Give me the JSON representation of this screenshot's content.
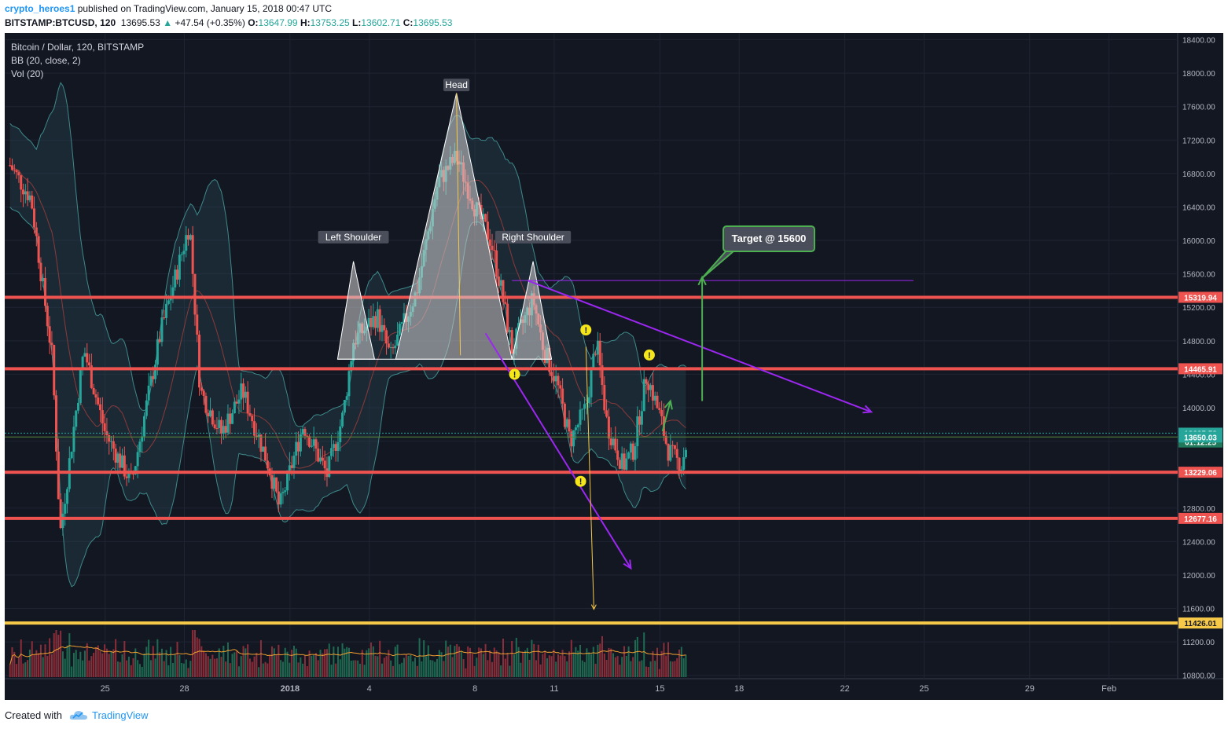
{
  "header": {
    "author": "crypto_heroes1",
    "published_text": " published on TradingView.com, January 15, 2018 00:47 UTC",
    "symbol": "BITSTAMP:BTCUSD, 120",
    "last_price": "13695.53",
    "change": "+47.54 (+0.35%)",
    "open_label": "O:",
    "open": "13647.99",
    "high_label": "H:",
    "high": "13753.25",
    "low_label": "L:",
    "low": "13602.71",
    "close_label": "C:",
    "close": "13695.53"
  },
  "chart_data": {
    "type": "candlestick",
    "legend": [
      "Bitcoin / Dollar, 120, BITSTAMP",
      "BB (20, close, 2)",
      "Vol (20)"
    ],
    "y_ticks": [
      10800,
      11200,
      11600,
      12000,
      12400,
      12800,
      13200,
      13600,
      14000,
      14400,
      14800,
      15200,
      15600,
      16000,
      16400,
      16800,
      17200,
      17600,
      18000,
      18400
    ],
    "ylim": [
      10760,
      18480
    ],
    "x_ticks": [
      "25",
      "28",
      "2018",
      "4",
      "8",
      "11",
      "15",
      "18",
      "22",
      "25",
      "29",
      "Feb"
    ],
    "x_tick_days": [
      3,
      6,
      10,
      13,
      17,
      20,
      24,
      27,
      31,
      34,
      38,
      41
    ],
    "xlim_days": [
      -0.8,
      43.6
    ],
    "last_data_day": 24,
    "price_levels": [
      {
        "label": "15319.94",
        "value": 15319.94,
        "color": "#ef5350",
        "kind": "support_resistance"
      },
      {
        "label": "14465.91",
        "value": 14465.91,
        "color": "#ef5350",
        "kind": "support_resistance"
      },
      {
        "label": "13229.06",
        "value": 13229.06,
        "color": "#ef5350",
        "kind": "support_resistance"
      },
      {
        "label": "12677.16",
        "value": 12677.16,
        "color": "#ef5350",
        "kind": "support_resistance"
      },
      {
        "label": "11426.01",
        "value": 11426.01,
        "color": "#f7c948",
        "kind": "target_low"
      }
    ],
    "current_price": {
      "label": "13695.53",
      "value": 13695.53,
      "color": "#26a69a"
    },
    "countdown": {
      "label": "01:12:25",
      "value": 13590,
      "color": "#26a69a"
    },
    "bb_basis": {
      "label": "13650.03",
      "value": 13650.03,
      "color": "#26a69a"
    },
    "pattern": {
      "left_shoulder": {
        "label": "Left Shoulder",
        "day": 12.4,
        "price": 15750
      },
      "head": {
        "label": "Head",
        "day": 16.3,
        "price": 17760
      },
      "right_shoulder": {
        "label": "Right Shoulder",
        "day": 19.2,
        "price": 15750
      },
      "neckline": 14580
    },
    "target": {
      "label": "Target @ 15600",
      "price": 15600
    },
    "anchor_points": [
      {
        "day": -0.6,
        "price": 16900
      },
      {
        "day": 0.2,
        "price": 16500
      },
      {
        "day": 1.0,
        "price": 14600
      },
      {
        "day": 1.3,
        "price": 12500
      },
      {
        "day": 2.2,
        "price": 14700
      },
      {
        "day": 3.0,
        "price": 13700
      },
      {
        "day": 4.0,
        "price": 13100
      },
      {
        "day": 5.1,
        "price": 14900
      },
      {
        "day": 6.2,
        "price": 16200
      },
      {
        "day": 6.6,
        "price": 14200
      },
      {
        "day": 7.4,
        "price": 13700
      },
      {
        "day": 8.2,
        "price": 14200
      },
      {
        "day": 9.2,
        "price": 13300
      },
      {
        "day": 9.6,
        "price": 12800
      },
      {
        "day": 10.5,
        "price": 13800
      },
      {
        "day": 11.4,
        "price": 13200
      },
      {
        "day": 12.0,
        "price": 13900
      },
      {
        "day": 12.4,
        "price": 14800
      },
      {
        "day": 13.3,
        "price": 15100
      },
      {
        "day": 13.8,
        "price": 14600
      },
      {
        "day": 14.8,
        "price": 15400
      },
      {
        "day": 15.6,
        "price": 16700
      },
      {
        "day": 16.3,
        "price": 17000
      },
      {
        "day": 17.0,
        "price": 16400
      },
      {
        "day": 17.6,
        "price": 16000
      },
      {
        "day": 18.0,
        "price": 15400
      },
      {
        "day": 18.4,
        "price": 14700
      },
      {
        "day": 19.2,
        "price": 15300
      },
      {
        "day": 19.6,
        "price": 14700
      },
      {
        "day": 20.1,
        "price": 14300
      },
      {
        "day": 20.6,
        "price": 13600
      },
      {
        "day": 21.2,
        "price": 14000
      },
      {
        "day": 21.6,
        "price": 14800
      },
      {
        "day": 22.0,
        "price": 13800
      },
      {
        "day": 22.6,
        "price": 13300
      },
      {
        "day": 23.0,
        "price": 13500
      },
      {
        "day": 23.5,
        "price": 14400
      },
      {
        "day": 24.0,
        "price": 13900
      },
      {
        "day": 24.3,
        "price": 13500
      },
      {
        "day": 24.8,
        "price": 13300
      },
      {
        "day": 25.1,
        "price": 13690
      }
    ]
  },
  "footer": {
    "created_with": "Created with",
    "brand": "TradingView"
  }
}
